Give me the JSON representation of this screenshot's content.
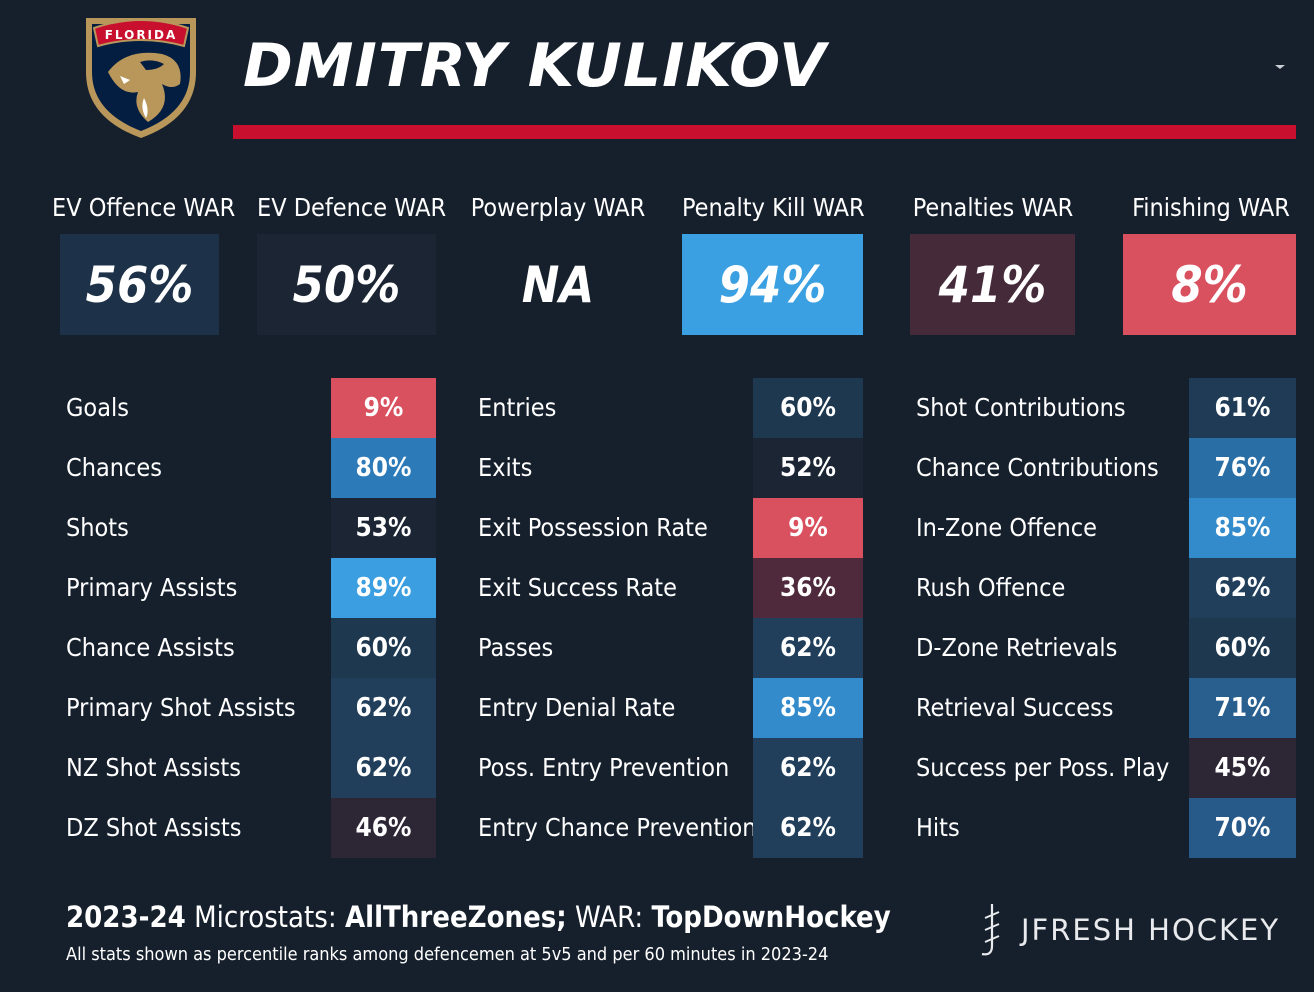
{
  "header": {
    "team_logo_text": "FLORIDA",
    "player_name": "DMITRY KULIKOV",
    "dropdown_icon": "chevron-down-icon"
  },
  "war": [
    {
      "label": "EV Offence WAR",
      "value": "56%",
      "color": "#1d3248"
    },
    {
      "label": "EV Defence WAR",
      "value": "50%",
      "color": "#1c2533"
    },
    {
      "label": "Powerplay WAR",
      "value": "NA",
      "color": "#16202c"
    },
    {
      "label": "Penalty Kill WAR",
      "value": "94%",
      "color": "#3aa0e2"
    },
    {
      "label": "Penalties WAR",
      "value": "41%",
      "color": "#452a3a"
    },
    {
      "label": "Finishing WAR",
      "value": "8%",
      "color": "#d9505f"
    }
  ],
  "columns": [
    {
      "rows": [
        {
          "label": "Goals",
          "value": "9%",
          "color": "#d9505f"
        },
        {
          "label": "Chances",
          "value": "80%",
          "color": "#2d7ab8"
        },
        {
          "label": "Shots",
          "value": "53%",
          "color": "#1c2533"
        },
        {
          "label": "Primary Assists",
          "value": "89%",
          "color": "#3a9ee0"
        },
        {
          "label": "Chance Assists",
          "value": "60%",
          "color": "#1e3850"
        },
        {
          "label": "Primary Shot Assists",
          "value": "62%",
          "color": "#213f5b"
        },
        {
          "label": "NZ Shot Assists",
          "value": "62%",
          "color": "#213f5b"
        },
        {
          "label": "DZ Shot Assists",
          "value": "46%",
          "color": "#2d2635"
        }
      ]
    },
    {
      "rows": [
        {
          "label": "Entries",
          "value": "60%",
          "color": "#1e3850"
        },
        {
          "label": "Exits",
          "value": "52%",
          "color": "#1c2533"
        },
        {
          "label": "Exit Possession Rate",
          "value": "9%",
          "color": "#d9505f"
        },
        {
          "label": "Exit Success Rate",
          "value": "36%",
          "color": "#4e2a3c"
        },
        {
          "label": "Passes",
          "value": "62%",
          "color": "#213f5b"
        },
        {
          "label": "Entry Denial Rate",
          "value": "85%",
          "color": "#338bcb"
        },
        {
          "label": "Poss. Entry Prevention",
          "value": "62%",
          "color": "#213f5b"
        },
        {
          "label": "Entry Chance Prevention",
          "value": "62%",
          "color": "#213f5b"
        }
      ]
    },
    {
      "rows": [
        {
          "label": "Shot Contributions",
          "value": "61%",
          "color": "#1f3b55"
        },
        {
          "label": "Chance Contributions",
          "value": "76%",
          "color": "#2a6ea6"
        },
        {
          "label": "In-Zone Offence",
          "value": "85%",
          "color": "#338bcb"
        },
        {
          "label": "Rush Offence",
          "value": "62%",
          "color": "#213f5b"
        },
        {
          "label": "D-Zone Retrievals",
          "value": "60%",
          "color": "#1e3850"
        },
        {
          "label": "Retrieval Success",
          "value": "71%",
          "color": "#285f8f"
        },
        {
          "label": "Success per Poss. Play",
          "value": "45%",
          "color": "#2d2635"
        },
        {
          "label": "Hits",
          "value": "70%",
          "color": "#275a89"
        }
      ]
    }
  ],
  "footer": {
    "season": "2023-24",
    "microstats_label": "Microstats:",
    "microstats_source": "AllThreeZones;",
    "war_label": "WAR:",
    "war_source": "TopDownHockey",
    "note": "All stats shown as percentile ranks among defencemen at 5v5 and per 60 minutes in 2023-24",
    "brand": "JFRESH HOCKEY"
  },
  "colors": {
    "background": "#16202c",
    "accent_red": "#c8102e",
    "logo_navy": "#041e42",
    "logo_gold": "#b9975b"
  }
}
